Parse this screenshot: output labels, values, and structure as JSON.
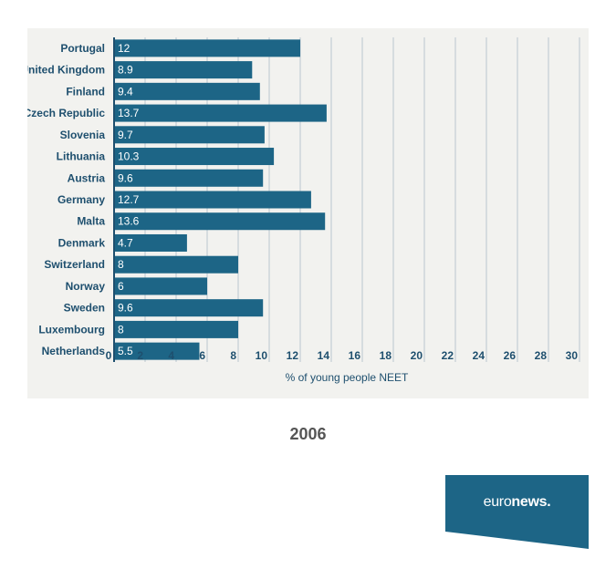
{
  "chart_data": {
    "type": "bar",
    "orientation": "horizontal",
    "categories": [
      "Portugal",
      "United Kingdom",
      "Finland",
      "Czech Republic",
      "Slovenia",
      "Lithuania",
      "Austria",
      "Germany",
      "Malta",
      "Denmark",
      "Switzerland",
      "Norway",
      "Sweden",
      "Luxembourg",
      "Netherlands"
    ],
    "values": [
      12,
      8.9,
      9.4,
      13.7,
      9.7,
      10.3,
      9.6,
      12.7,
      13.6,
      4.7,
      8,
      6,
      9.6,
      8,
      5.5
    ],
    "value_labels": [
      "12",
      "8.9",
      "9.4",
      "13.7",
      "9.7",
      "10.3",
      "9.6",
      "12.7",
      "13.6",
      "4.7",
      "8",
      "6",
      "9.6",
      "8",
      "5.5"
    ],
    "xticks": [
      "0",
      "2",
      "4",
      "6",
      "8",
      "10",
      "12",
      "14",
      "16",
      "18",
      "20",
      "22",
      "24",
      "26",
      "28",
      "30"
    ],
    "xlabel": "% of young people NEET",
    "ylabel": "",
    "xlim": [
      0,
      30
    ],
    "grid": "vertical",
    "colors": {
      "bar": "#1d6586",
      "text": "#1e4f6e",
      "panel": "#f2f2ef"
    }
  },
  "year_label": "2006",
  "logo": {
    "text_regular": "euro",
    "text_bold": "news.",
    "color": "#1d6586"
  }
}
